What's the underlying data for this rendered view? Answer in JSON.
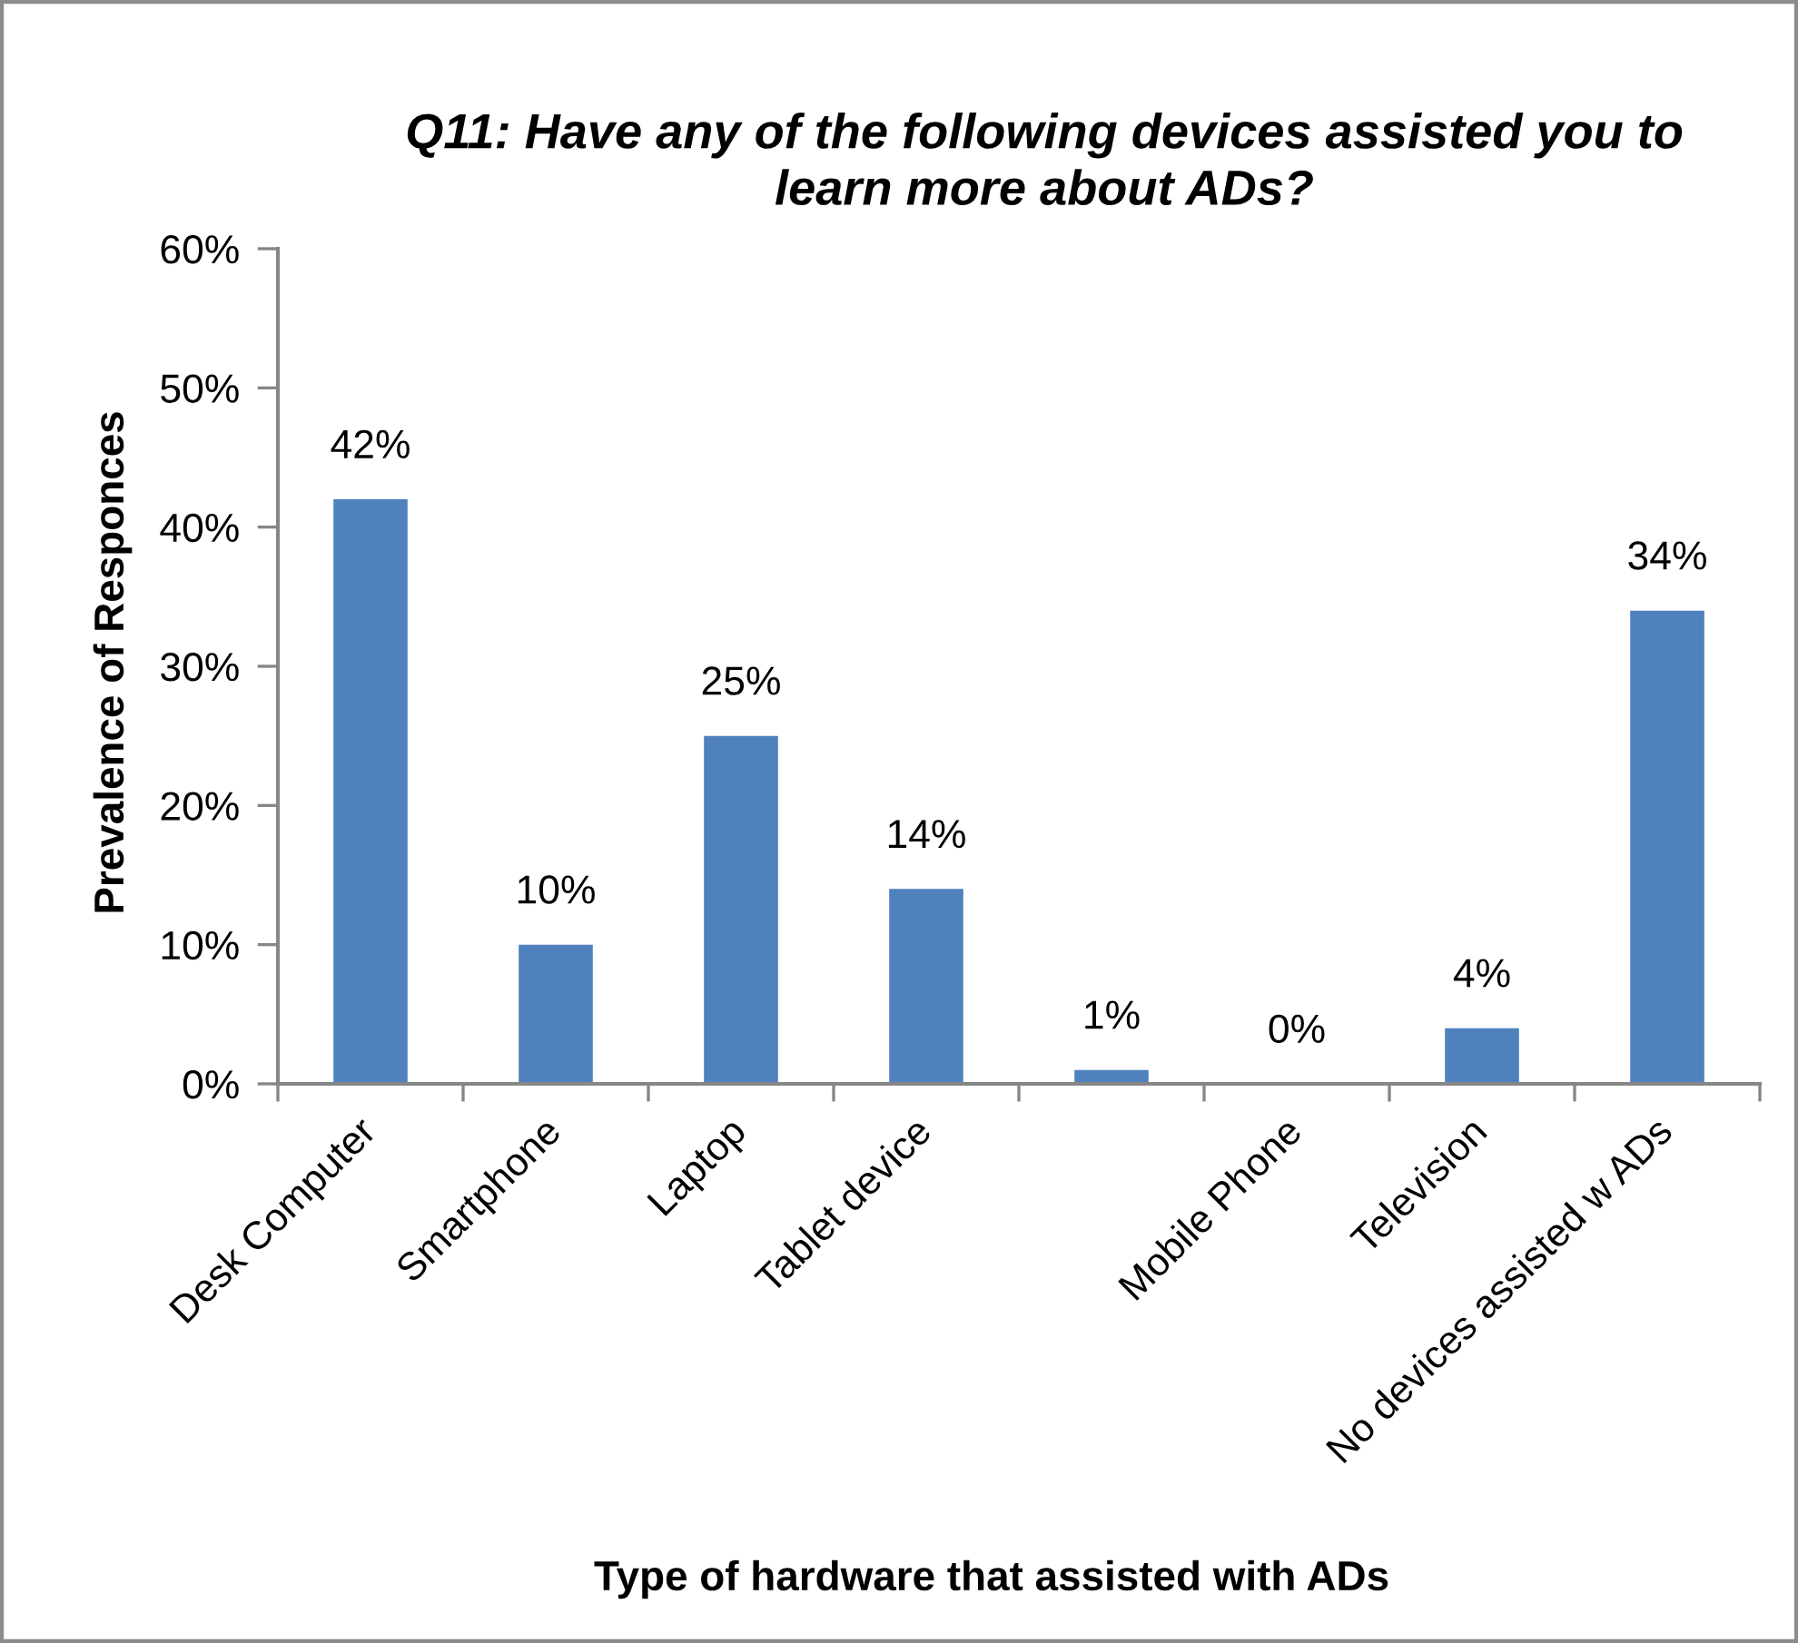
{
  "chart_data": {
    "type": "bar",
    "title": "Q11: Have any of the following devices assisted you to learn more about ADs?",
    "xlabel": "Type of hardware that assisted with ADs",
    "ylabel": "Prevalence of Responces",
    "categories": [
      "Desk Computer",
      "Smartphone",
      "Laptop",
      "Tablet device",
      null,
      "Mobile Phone",
      "Television",
      "No devices assisted w ADs"
    ],
    "values": [
      42,
      10,
      25,
      14,
      1,
      0,
      4,
      34
    ],
    "value_labels": [
      "42%",
      "10%",
      "25%",
      "14%",
      "1%",
      "0%",
      "4%",
      "34%"
    ],
    "color": "#4f81bd",
    "ylim": [
      0,
      60
    ],
    "yticks": [
      {
        "value": 0,
        "label": "0%"
      },
      {
        "value": 10,
        "label": "10%"
      },
      {
        "value": 20,
        "label": "20%"
      },
      {
        "value": 30,
        "label": "30%"
      },
      {
        "value": 40,
        "label": "40%"
      },
      {
        "value": 50,
        "label": "50%"
      },
      {
        "value": 60,
        "label": "60%"
      }
    ]
  }
}
